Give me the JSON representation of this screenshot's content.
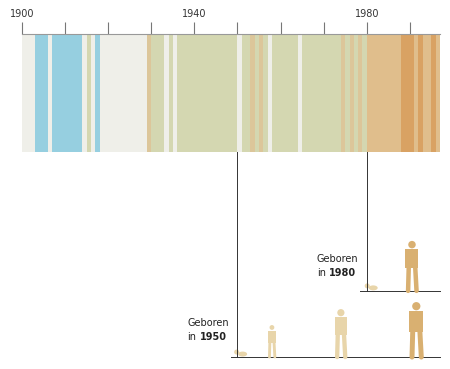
{
  "chart_data": {
    "type": "stripes",
    "x": [
      1900,
      1901,
      1902,
      1903,
      1904,
      1905,
      1906,
      1907,
      1908,
      1909,
      1910,
      1911,
      1912,
      1913,
      1914,
      1915,
      1916,
      1917,
      1918,
      1919,
      1920,
      1921,
      1922,
      1923,
      1924,
      1925,
      1926,
      1927,
      1928,
      1929,
      1930,
      1931,
      1932,
      1933,
      1934,
      1935,
      1936,
      1937,
      1938,
      1939,
      1940,
      1941,
      1942,
      1943,
      1944,
      1945,
      1946,
      1947,
      1948,
      1949,
      1950,
      1951,
      1952,
      1953,
      1954,
      1955,
      1956,
      1957,
      1958,
      1959,
      1960,
      1961,
      1962,
      1963,
      1964,
      1965,
      1966,
      1967,
      1968,
      1969,
      1970,
      1971,
      1972,
      1973,
      1974,
      1975,
      1976,
      1977,
      1978,
      1979,
      1980,
      1981,
      1982,
      1983,
      1984,
      1985,
      1986,
      1987,
      1988,
      1989,
      1990,
      1991,
      1992,
      1993,
      1994,
      1995,
      1996
    ],
    "colors": [
      "#efefe9",
      "#efefe9",
      "#efefe9",
      "#96cfe0",
      "#96cfe0",
      "#96cfe0",
      "#efefe9",
      "#96cfe0",
      "#96cfe0",
      "#96cfe0",
      "#96cfe0",
      "#96cfe0",
      "#96cfe0",
      "#96cfe0",
      "#efefe9",
      "#d4d7b1",
      "#efefe9",
      "#96cfe0",
      "#efefe9",
      "#efefe9",
      "#efefe9",
      "#efefe9",
      "#efefe9",
      "#efefe9",
      "#efefe9",
      "#efefe9",
      "#efefe9",
      "#efefe9",
      "#efefe9",
      "#dcc69a",
      "#d4d7b1",
      "#d4d7b1",
      "#d4d7b1",
      "#efefe9",
      "#d4d7b1",
      "#efefe9",
      "#d4d7b1",
      "#d4d7b1",
      "#d4d7b1",
      "#d4d7b1",
      "#d4d7b1",
      "#d4d7b1",
      "#d4d7b1",
      "#d4d7b1",
      "#d4d7b1",
      "#d4d7b1",
      "#d4d7b1",
      "#d4d7b1",
      "#d4d7b1",
      "#d4d7b1",
      "#efefe9",
      "#d4d7b1",
      "#d4d7b1",
      "#dcc69a",
      "#d4d7b1",
      "#dcc69a",
      "#d4d7b1",
      "#efefe9",
      "#d4d7b1",
      "#d4d7b1",
      "#d4d7b1",
      "#d4d7b1",
      "#d4d7b1",
      "#d4d7b1",
      "#efefe9",
      "#d4d7b1",
      "#d4d7b1",
      "#d4d7b1",
      "#d4d7b1",
      "#d4d7b1",
      "#d4d7b1",
      "#d4d7b1",
      "#d4d7b1",
      "#d4d7b1",
      "#dcc69a",
      "#d4d7b1",
      "#dcc69a",
      "#d4d7b1",
      "#dcc69a",
      "#d4d7b1",
      "#e0be8c",
      "#e0be8c",
      "#e0be8c",
      "#e0be8c",
      "#e0be8c",
      "#e0be8c",
      "#e0be8c",
      "#e0be8c",
      "#d9a263",
      "#d9a263",
      "#d9a263",
      "#e0be8c",
      "#d9a263",
      "#e0be8c",
      "#e0be8c",
      "#d9a263",
      "#e0be8c"
    ],
    "xlim": [
      1900,
      1997
    ],
    "xticks": [
      1900,
      {
        "value": 1910,
        "label": null
      },
      {
        "value": 1920,
        "label": null
      },
      {
        "value": 1930,
        "label": null
      },
      1940,
      {
        "value": 1950,
        "label": null
      },
      {
        "value": 1960,
        "label": null
      },
      {
        "value": 1970,
        "label": null
      },
      1980,
      {
        "value": 1990,
        "label": null
      }
    ],
    "tick_labels": "x",
    "annotations": [
      {
        "text": "Geboren in",
        "year": 1950
      },
      {
        "text": "Geboren in",
        "year": 1980
      }
    ]
  }
}
